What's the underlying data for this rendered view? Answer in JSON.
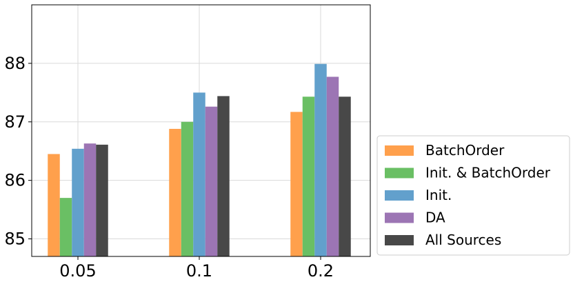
{
  "chart_data": {
    "type": "bar",
    "title": "",
    "xlabel": "",
    "ylabel": "",
    "categories": [
      "0.05",
      "0.1",
      "0.2"
    ],
    "ylim": [
      84.7,
      89.0
    ],
    "yticks": [
      85,
      86,
      87,
      88
    ],
    "grid": true,
    "legend_position": "right-bottom-outside",
    "series": [
      {
        "name": "BatchOrder",
        "color": "#FFA04C",
        "values": [
          86.45,
          86.88,
          87.17
        ]
      },
      {
        "name": "Init. & BatchOrder",
        "color": "#6ABF64",
        "values": [
          85.7,
          87.0,
          87.43
        ]
      },
      {
        "name": "Init.",
        "color": "#62A0CC",
        "values": [
          86.54,
          87.5,
          87.99
        ]
      },
      {
        "name": "DA",
        "color": "#9C75B4",
        "values": [
          86.63,
          87.26,
          87.77
        ]
      },
      {
        "name": "All Sources",
        "color": "#484848",
        "values": [
          86.61,
          87.44,
          87.43
        ]
      }
    ]
  }
}
